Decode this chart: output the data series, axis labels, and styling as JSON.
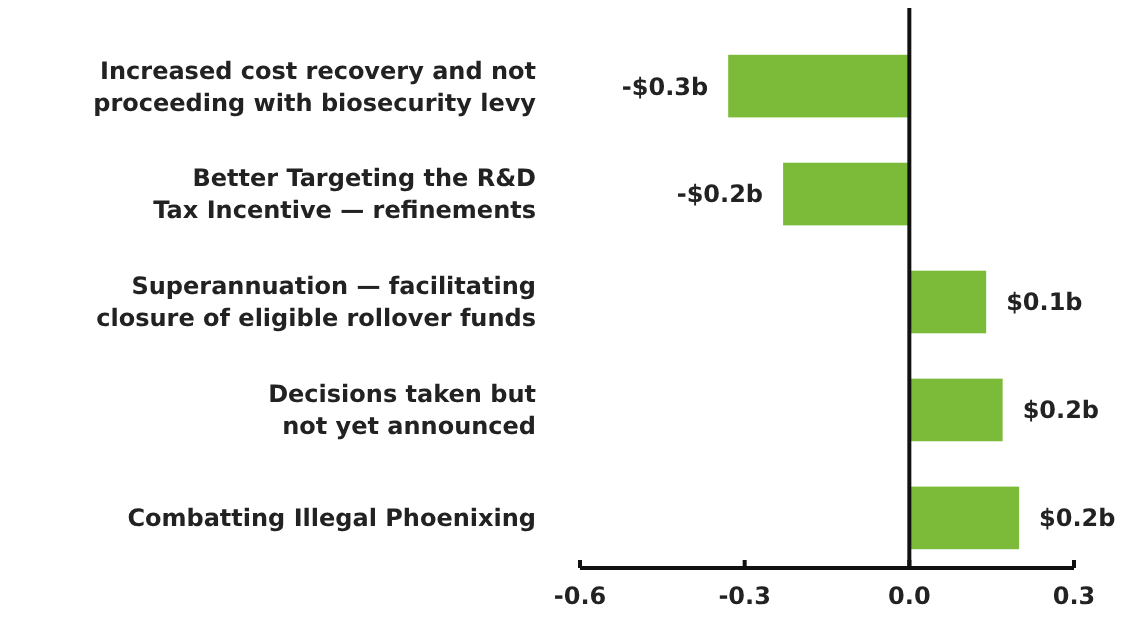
{
  "chart_data": {
    "type": "bar",
    "orientation": "horizontal",
    "categories": [
      "Increased cost recovery and not\nproceeding with biosecurity levy",
      "Better Targeting the R&D\nTax Incentive — refinements",
      "Superannuation — facilitating\nclosure of eligible rollover funds",
      "Decisions taken but\nnot yet announced",
      "Combatting Illegal Phoenixing"
    ],
    "values": [
      -0.33,
      -0.23,
      0.14,
      0.17,
      0.2
    ],
    "value_labels": [
      "-$0.3b",
      "-$0.2b",
      "$0.1b",
      "$0.2b",
      "$0.2b"
    ],
    "color": "#7cba3a",
    "xlim": [
      -0.6,
      0.3
    ],
    "xticks": [
      -0.6,
      -0.3,
      "0.0",
      0.3
    ],
    "grid": false
  }
}
